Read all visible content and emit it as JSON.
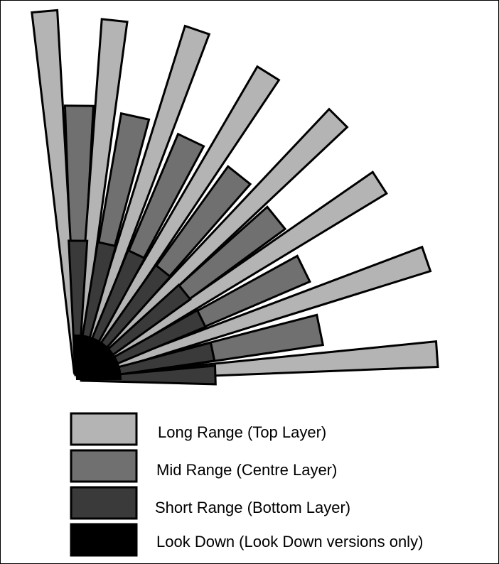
{
  "legend": {
    "items": [
      {
        "key": "long",
        "label": "Long Range (Top Layer)",
        "color": "#b4b4b4"
      },
      {
        "key": "mid",
        "label": "Mid Range (Centre Layer)",
        "color": "#707070"
      },
      {
        "key": "short",
        "label": "Short Range (Bottom Layer)",
        "color": "#3a3a3a"
      },
      {
        "key": "look",
        "label": "Look Down (Look Down versions only)",
        "color": "#000000"
      }
    ]
  },
  "diagram": {
    "spoke_count": 8,
    "colors": {
      "long": "#b4b4b4",
      "mid": "#707070",
      "short": "#3a3a3a",
      "look": "#000000",
      "outline": "#000000"
    }
  }
}
